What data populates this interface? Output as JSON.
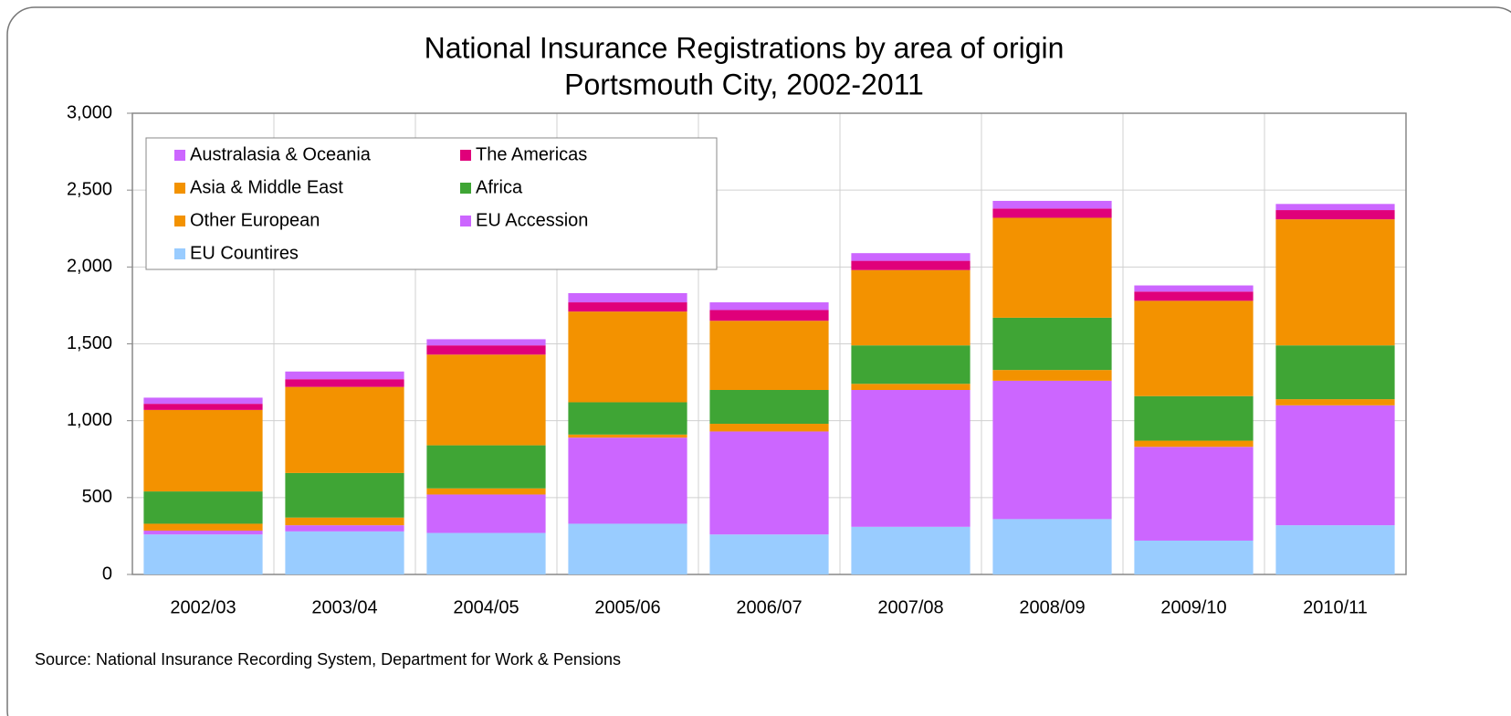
{
  "chart_data": {
    "type": "stacked-bar",
    "title": "National Insurance Registrations by area of origin",
    "subtitle": "Portsmouth City, 2002-2011",
    "source": "Source:  National Insurance Recording System, Department for Work & Pensions",
    "categories": [
      "2002/03",
      "2003/04",
      "2004/05",
      "2005/06",
      "2006/07",
      "2007/08",
      "2008/09",
      "2009/10",
      "2010/11"
    ],
    "series": [
      {
        "name": "EU Countires",
        "color": "#99ccff",
        "values": [
          260,
          280,
          270,
          330,
          260,
          310,
          360,
          220,
          320
        ]
      },
      {
        "name": "EU Accession",
        "color": "#cc66ff",
        "values": [
          25,
          40,
          250,
          560,
          670,
          890,
          900,
          610,
          780
        ]
      },
      {
        "name": "Other European",
        "color": "#f39200",
        "values": [
          45,
          50,
          40,
          20,
          50,
          40,
          70,
          40,
          40
        ]
      },
      {
        "name": "Africa",
        "color": "#3fa535",
        "values": [
          210,
          290,
          280,
          210,
          220,
          250,
          340,
          290,
          350
        ]
      },
      {
        "name": "Asia & Middle East",
        "color": "#f39200",
        "values": [
          530,
          560,
          590,
          590,
          450,
          490,
          650,
          620,
          820
        ]
      },
      {
        "name": "The Americas",
        "color": "#e0007a",
        "values": [
          40,
          50,
          60,
          60,
          70,
          60,
          60,
          60,
          60
        ]
      },
      {
        "name": "Australasia & Oceania",
        "color": "#cc66ff",
        "values": [
          40,
          50,
          40,
          60,
          50,
          50,
          50,
          40,
          40
        ]
      }
    ],
    "ylim": [
      0,
      3000
    ],
    "yticks": [
      0,
      500,
      {
        "value": 1000,
        "label": "1,000"
      },
      {
        "value": 1500,
        "label": "1,500"
      },
      {
        "value": 2000,
        "label": "2,000"
      },
      {
        "value": 2500,
        "label": "2,500"
      },
      {
        "value": 3000,
        "label": "3,000"
      }
    ],
    "grid": true,
    "legend": "top-left"
  }
}
